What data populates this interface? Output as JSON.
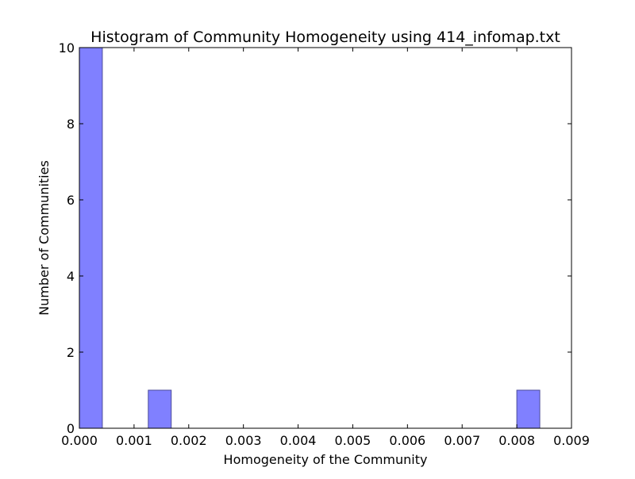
{
  "chart_data": {
    "type": "bar",
    "title": "Histogram of Community Homogeneity using 414_infomap.txt",
    "xlabel": "Homogeneity of the Community",
    "ylabel": "Number of Communities",
    "xlim": [
      0,
      0.009
    ],
    "ylim": [
      0,
      10
    ],
    "xticks": [
      "0.000",
      "0.001",
      "0.002",
      "0.003",
      "0.004",
      "0.005",
      "0.006",
      "0.007",
      "0.008",
      "0.009"
    ],
    "xtick_values": [
      0,
      0.001,
      0.002,
      0.003,
      0.004,
      0.005,
      0.006,
      0.007,
      0.008,
      0.009
    ],
    "yticks": [
      "0",
      "2",
      "4",
      "6",
      "8",
      "10"
    ],
    "ytick_values": [
      0,
      2,
      4,
      6,
      8,
      10
    ],
    "bins": [
      {
        "x0": 0.0,
        "x1": 0.00042,
        "count": 10
      },
      {
        "x0": 0.00126,
        "x1": 0.00168,
        "count": 1
      },
      {
        "x0": 0.008,
        "x1": 0.00842,
        "count": 1
      }
    ],
    "bar_color": "#8080ff",
    "bar_edge_color": "#4d4d99",
    "grid": false
  }
}
